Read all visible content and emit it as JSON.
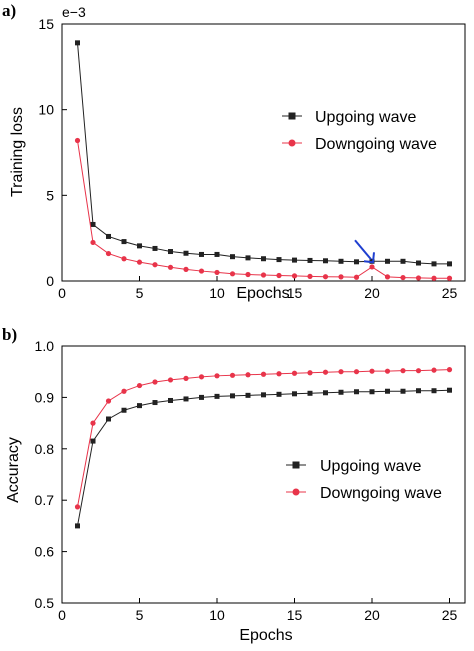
{
  "chart_data": [
    {
      "type": "line",
      "panel_label": "a)",
      "xlabel": "Epochs",
      "ylabel": "Training loss",
      "exponent_label": "e−3",
      "xlim": [
        0,
        26
      ],
      "ylim": [
        0,
        15
      ],
      "xticks": [
        0,
        5,
        10,
        15,
        20,
        25
      ],
      "yticks": [
        0,
        5,
        10,
        15
      ],
      "legend_position": "right",
      "annotation": {
        "type": "arrow",
        "x": 20,
        "y": 0.8,
        "color": "#1f3fd0"
      },
      "series": [
        {
          "name": "Upgoing wave",
          "color": "#222222",
          "marker": "square",
          "x": [
            1,
            2,
            3,
            4,
            5,
            6,
            7,
            8,
            9,
            10,
            11,
            12,
            13,
            14,
            15,
            16,
            17,
            18,
            19,
            20,
            21,
            22,
            23,
            24,
            25
          ],
          "y": [
            13.9,
            3.3,
            2.6,
            2.3,
            2.05,
            1.9,
            1.72,
            1.62,
            1.55,
            1.55,
            1.42,
            1.35,
            1.3,
            1.25,
            1.22,
            1.2,
            1.18,
            1.15,
            1.12,
            1.15,
            1.15,
            1.15,
            1.05,
            1.0,
            1.0
          ]
        },
        {
          "name": "Downgoing wave",
          "color": "#e8344a",
          "marker": "circle",
          "x": [
            1,
            2,
            3,
            4,
            5,
            6,
            7,
            8,
            9,
            10,
            11,
            12,
            13,
            14,
            15,
            16,
            17,
            18,
            19,
            20,
            21,
            22,
            23,
            24,
            25
          ],
          "y": [
            8.2,
            2.25,
            1.6,
            1.3,
            1.1,
            0.95,
            0.8,
            0.68,
            0.58,
            0.5,
            0.42,
            0.38,
            0.35,
            0.32,
            0.3,
            0.27,
            0.25,
            0.24,
            0.22,
            0.82,
            0.24,
            0.2,
            0.18,
            0.16,
            0.16
          ]
        }
      ]
    },
    {
      "type": "line",
      "panel_label": "b)",
      "xlabel": "Epochs",
      "ylabel": "Accuracy",
      "xlim": [
        0,
        26
      ],
      "ylim": [
        0.5,
        1.0
      ],
      "xticks": [
        0,
        5,
        10,
        15,
        20,
        25
      ],
      "yticks": [
        "0.5",
        "0.6",
        "0.7",
        "0.8",
        "0.9",
        "1.0"
      ],
      "legend_position": "center-right",
      "series": [
        {
          "name": "Upgoing wave",
          "color": "#222222",
          "marker": "square",
          "x": [
            1,
            2,
            3,
            4,
            5,
            6,
            7,
            8,
            9,
            10,
            11,
            12,
            13,
            14,
            15,
            16,
            17,
            18,
            19,
            20,
            21,
            22,
            23,
            24,
            25
          ],
          "y": [
            0.65,
            0.815,
            0.858,
            0.875,
            0.884,
            0.89,
            0.894,
            0.897,
            0.9,
            0.902,
            0.903,
            0.904,
            0.905,
            0.906,
            0.907,
            0.908,
            0.909,
            0.91,
            0.911,
            0.911,
            0.912,
            0.912,
            0.913,
            0.913,
            0.914
          ]
        },
        {
          "name": "Downgoing wave",
          "color": "#e8344a",
          "marker": "circle",
          "x": [
            1,
            2,
            3,
            4,
            5,
            6,
            7,
            8,
            9,
            10,
            11,
            12,
            13,
            14,
            15,
            16,
            17,
            18,
            19,
            20,
            21,
            22,
            23,
            24,
            25
          ],
          "y": [
            0.687,
            0.85,
            0.893,
            0.912,
            0.923,
            0.93,
            0.934,
            0.937,
            0.94,
            0.942,
            0.943,
            0.944,
            0.945,
            0.946,
            0.947,
            0.948,
            0.949,
            0.95,
            0.95,
            0.951,
            0.951,
            0.952,
            0.952,
            0.953,
            0.954
          ]
        }
      ]
    }
  ]
}
